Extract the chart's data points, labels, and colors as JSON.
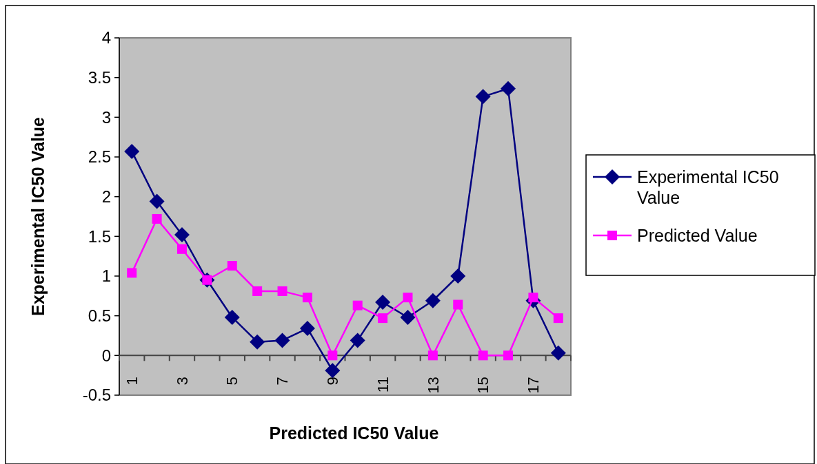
{
  "chart_data": {
    "type": "line",
    "xlabel": "Predicted IC50 Value",
    "ylabel": "Experimental IC50 Value",
    "categories": [
      "1",
      null,
      "3",
      null,
      "5",
      null,
      "7",
      null,
      "9",
      null,
      "11",
      null,
      "13",
      null,
      "15",
      null,
      "17",
      null
    ],
    "series": [
      {
        "name": "Experimental IC50 Value",
        "color": "#000080",
        "marker": "diamond",
        "values": [
          2.57,
          1.94,
          1.52,
          0.95,
          0.48,
          0.17,
          0.19,
          0.34,
          -0.19,
          0.19,
          0.67,
          0.48,
          0.69,
          1.0,
          3.26,
          3.36,
          0.69,
          0.03
        ]
      },
      {
        "name": "Predicted Value",
        "color": "#ff00ff",
        "marker": "square",
        "values": [
          1.04,
          1.72,
          1.34,
          0.95,
          1.13,
          0.81,
          0.81,
          0.73,
          0.0,
          0.63,
          0.47,
          0.73,
          0.0,
          0.64,
          0.0,
          0.0,
          0.73,
          0.47
        ]
      }
    ],
    "ylim": [
      -0.5,
      4
    ],
    "yticks": [
      -0.5,
      0,
      0.5,
      1,
      1.5,
      2,
      2.5,
      3,
      3.5,
      4
    ],
    "legend": "right",
    "line_style": "solid"
  }
}
